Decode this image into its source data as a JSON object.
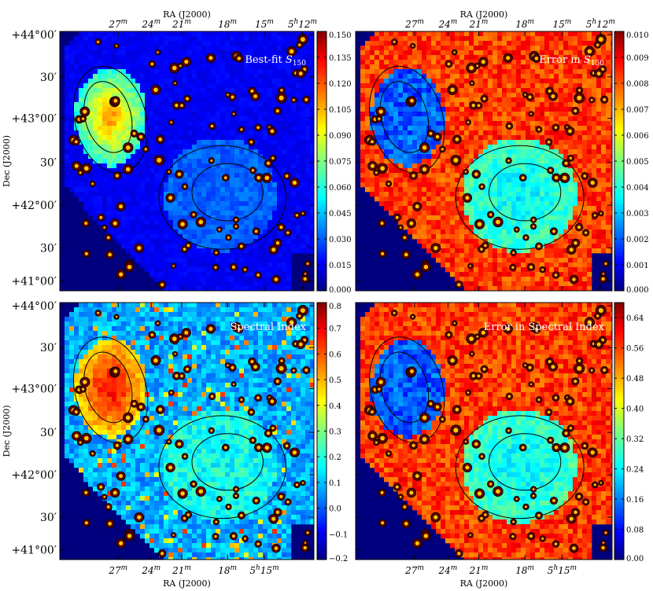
{
  "chart_data": [
    {
      "type": "heatmap",
      "title": "Best-fit S150",
      "title_main": "Best-fit ",
      "title_sym": "S",
      "title_sub": "150",
      "xlabel": "RA (J2000)",
      "ylabel": "Dec (J2000)",
      "x_ticks": [
        {
          "m": "27",
          "s": "m"
        },
        {
          "m": "24",
          "s": "m"
        },
        {
          "m": "21",
          "s": "m"
        },
        {
          "m": "18",
          "s": "m"
        },
        {
          "m": "15",
          "s": "m"
        },
        {
          "h": "5",
          "hs": "h",
          "m": "12",
          "s": "m"
        }
      ],
      "y_ticks": [
        "+44°00′",
        "30′",
        "+43°00′",
        "30′",
        "+42°00′",
        "30′",
        "+41°00′"
      ],
      "colorbar": {
        "min": 0.0,
        "max": 0.15,
        "ticks": [
          "0.000",
          "0.015",
          "0.030",
          "0.045",
          "0.060",
          "0.075",
          "0.090",
          "0.105",
          "0.120",
          "0.135",
          "0.150"
        ]
      },
      "colormap": "jet",
      "pattern": "low-background"
    },
    {
      "type": "heatmap",
      "title": "Error in S150",
      "title_main": "Error in ",
      "title_sym": "S",
      "title_sub": "150",
      "xlabel": "RA (J2000)",
      "x_ticks": [
        {
          "m": "27",
          "s": "m"
        },
        {
          "m": "24",
          "s": "m"
        },
        {
          "m": "21",
          "s": "m"
        },
        {
          "m": "18",
          "s": "m"
        },
        {
          "m": "15",
          "s": "m"
        },
        {
          "h": "5",
          "hs": "h",
          "m": "12",
          "s": "m"
        }
      ],
      "colorbar": {
        "min": 0.0,
        "max": 0.01,
        "ticks": [
          "0.000",
          "0.001",
          "0.002",
          "0.003",
          "0.004",
          "0.005",
          "0.006",
          "0.007",
          "0.008",
          "0.009",
          "0.010"
        ]
      },
      "colormap": "jet",
      "pattern": "high-background"
    },
    {
      "type": "heatmap",
      "title": "Spectral Index",
      "xlabel": "RA (J2000)",
      "ylabel": "Dec (J2000)",
      "x_ticks": [
        {
          "m": "27",
          "s": "m"
        },
        {
          "m": "24",
          "s": "m"
        },
        {
          "m": "21",
          "s": "m"
        },
        {
          "m": "18",
          "s": "m"
        },
        {
          "h": "5",
          "hs": "h",
          "m": "15",
          "s": "m"
        }
      ],
      "y_ticks": [
        "+44°00′",
        "30′",
        "+43°00′",
        "30′",
        "+42°00′",
        "30′",
        "+41°00′"
      ],
      "colorbar": {
        "min": -0.2,
        "max": 0.8,
        "ticks": [
          "−0.2",
          "−0.1",
          "0.0",
          "0.1",
          "0.2",
          "0.3",
          "0.4",
          "0.5",
          "0.6",
          "0.7",
          "0.8"
        ]
      },
      "colormap": "jet",
      "pattern": "index"
    },
    {
      "type": "heatmap",
      "title": "Error in Spectral Index",
      "xlabel": "RA (J2000)",
      "x_ticks": [
        {
          "m": "27",
          "s": "m"
        },
        {
          "m": "24",
          "s": "m"
        },
        {
          "m": "21",
          "s": "m"
        },
        {
          "m": "18",
          "s": "m"
        },
        {
          "h": "5",
          "hs": "h",
          "m": "15",
          "s": "m"
        }
      ],
      "colorbar": {
        "min": 0.0,
        "max": 0.68,
        "ticks": [
          "0.00",
          "0.08",
          "0.16",
          "0.24",
          "0.32",
          "0.40",
          "0.48",
          "0.56",
          "0.64"
        ]
      },
      "colormap": "jet",
      "pattern": "high-background"
    }
  ]
}
